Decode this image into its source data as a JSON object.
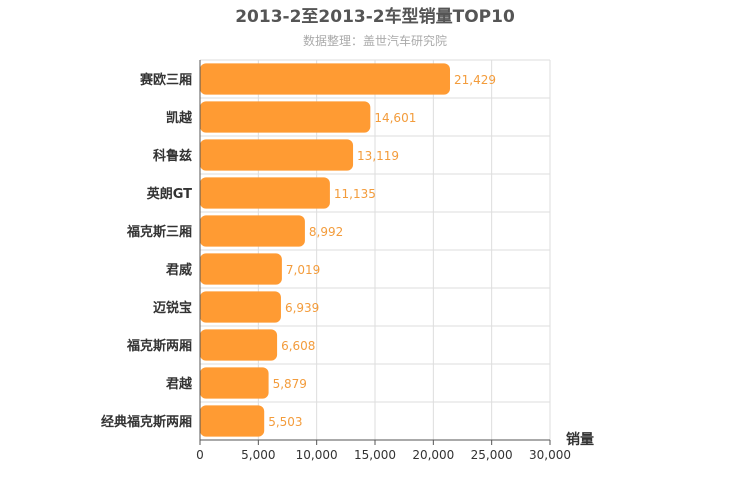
{
  "chart_data": {
    "type": "bar",
    "orientation": "horizontal",
    "title": "2013-2至2013-2车型销量TOP10",
    "subtitle": "数据整理：盖世汽车研究院",
    "xlabel": "销量",
    "ylabel": "",
    "xlim": [
      0,
      30000
    ],
    "ticks": [
      0,
      5000,
      10000,
      15000,
      20000,
      25000,
      30000
    ],
    "tick_labels": [
      "0",
      "5,000",
      "10,000",
      "15,000",
      "20,000",
      "25,000",
      "30,000"
    ],
    "categories": [
      "赛欧三厢",
      "凯越",
      "科鲁兹",
      "英朗GT",
      "福克斯三厢",
      "君威",
      "迈锐宝",
      "福克斯两厢",
      "君越",
      "经典福克斯两厢"
    ],
    "values": [
      21429,
      14601,
      13119,
      11135,
      8992,
      7019,
      6939,
      6608,
      5879,
      5503
    ],
    "value_labels": [
      "21,429",
      "14,601",
      "13,119",
      "11,135",
      "8,992",
      "7,019",
      "6,939",
      "6,608",
      "5,879",
      "5,503"
    ],
    "bar_color": "#ff9b33",
    "label_color": "#f39c3c",
    "grid": true,
    "legend": "none"
  }
}
